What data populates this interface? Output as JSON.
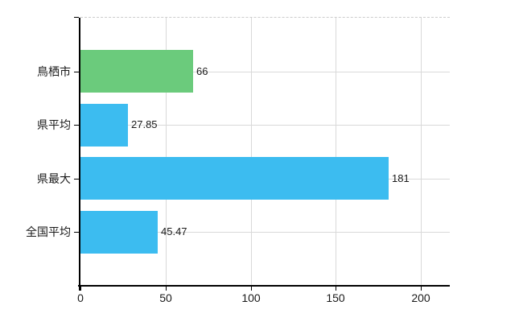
{
  "chart_data": {
    "type": "bar",
    "orientation": "horizontal",
    "title": "",
    "xlabel": "",
    "ylabel": "",
    "categories": [
      "鳥栖市",
      "県平均",
      "県最大",
      "全国平均"
    ],
    "values": [
      66,
      27.85,
      181,
      45.47
    ],
    "value_labels": [
      "66",
      "27.85",
      "181",
      "45.47"
    ],
    "bar_colors": [
      "#6bcb7c",
      "#3cbcf0",
      "#3cbcf0",
      "#3cbcf0"
    ],
    "xlim": [
      0,
      217
    ],
    "x_ticks": [
      0,
      50,
      100,
      150,
      200
    ],
    "x_tick_labels": [
      "0",
      "50",
      "100",
      "150",
      "200"
    ],
    "grid": true,
    "legend_position": "none"
  },
  "colors": {
    "background": "#ffffff",
    "axis": "#000000",
    "gridline": "#d9d9d9",
    "plot_top_border": "#cccccc",
    "label_text": "#1a1a1a",
    "bar_highlight": "#6bcb7c",
    "bar_default": "#3cbcf0"
  }
}
